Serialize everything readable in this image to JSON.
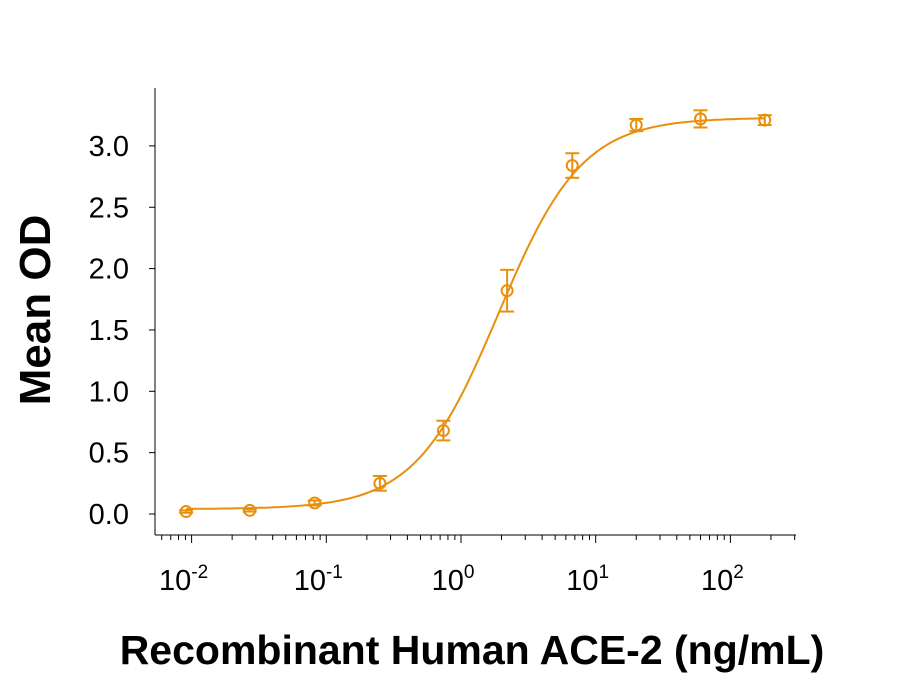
{
  "chart_data": {
    "type": "scatter",
    "title": "",
    "xlabel": "Recombinant Human ACE-2 (ng/mL)",
    "ylabel": "Mean OD",
    "x_scale": "log",
    "xlim": [
      0.0048,
      180
    ],
    "ylim": [
      -0.17,
      3.48
    ],
    "x_ticks": [
      {
        "base": "10",
        "exp": "-2",
        "value": 0.01
      },
      {
        "base": "10",
        "exp": "-1",
        "value": 0.1
      },
      {
        "base": "10",
        "exp": "0",
        "value": 1
      },
      {
        "base": "10",
        "exp": "1",
        "value": 10
      },
      {
        "base": "10",
        "exp": "2",
        "value": 100
      }
    ],
    "y_ticks": [
      "0.0",
      "0.5",
      "1.0",
      "1.5",
      "2.0",
      "2.5",
      "3.0"
    ],
    "grid": false,
    "color": "#E8900C",
    "series": [
      {
        "x": [
          0.0091,
          0.027,
          0.082,
          0.25,
          0.74,
          2.2,
          6.7,
          20,
          60,
          180
        ],
        "y": [
          0.02,
          0.03,
          0.09,
          0.25,
          0.68,
          1.82,
          2.84,
          3.17,
          3.22,
          3.21
        ],
        "error": [
          0.01,
          0.01,
          0.02,
          0.06,
          0.08,
          0.17,
          0.1,
          0.05,
          0.07,
          0.04
        ],
        "marker": "open-circle",
        "fit": {
          "model": "4PL",
          "bottom": 0.04,
          "top": 3.23,
          "ec50": 1.9,
          "hill": 1.4
        }
      }
    ]
  }
}
